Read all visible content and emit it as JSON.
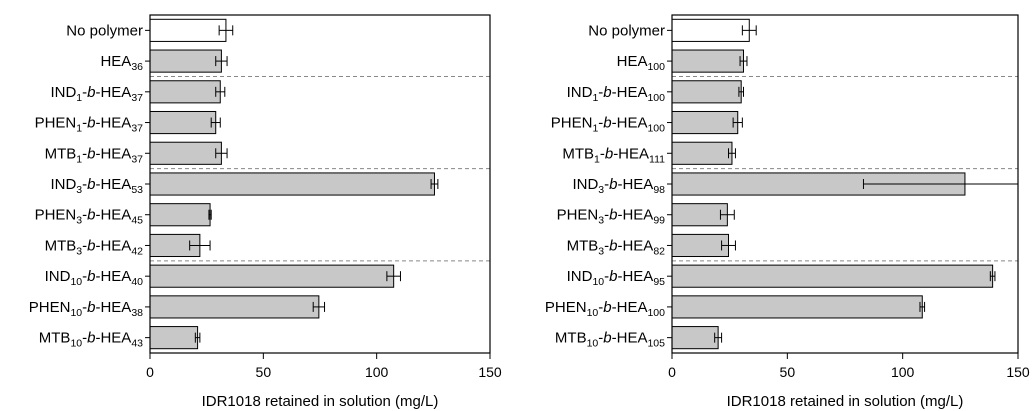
{
  "chart_data": [
    {
      "type": "bar",
      "orientation": "horizontal",
      "categories": [
        [
          "No polymer"
        ],
        [
          "HEA",
          {
            "sub": "36"
          }
        ],
        [
          "IND",
          {
            "sub": "1"
          },
          "-",
          {
            "it": "b"
          },
          "-HEA",
          {
            "sub": "37"
          }
        ],
        [
          "PHEN",
          {
            "sub": "1"
          },
          "-",
          {
            "it": "b"
          },
          "-HEA",
          {
            "sub": "37"
          }
        ],
        [
          "MTB",
          {
            "sub": "1"
          },
          "-",
          {
            "it": "b"
          },
          "-HEA",
          {
            "sub": "37"
          }
        ],
        [
          "IND",
          {
            "sub": "3"
          },
          "-",
          {
            "it": "b"
          },
          "-HEA",
          {
            "sub": "53"
          }
        ],
        [
          "PHEN",
          {
            "sub": "3"
          },
          "-",
          {
            "it": "b"
          },
          "-HEA",
          {
            "sub": "45"
          }
        ],
        [
          "MTB",
          {
            "sub": "3"
          },
          "-",
          {
            "it": "b"
          },
          "-HEA",
          {
            "sub": "42"
          }
        ],
        [
          "IND",
          {
            "sub": "10"
          },
          "-",
          {
            "it": "b"
          },
          "-HEA",
          {
            "sub": "40"
          }
        ],
        [
          "PHEN",
          {
            "sub": "10"
          },
          "-",
          {
            "it": "b"
          },
          "-HEA",
          {
            "sub": "38"
          }
        ],
        [
          "MTB",
          {
            "sub": "10"
          },
          "-",
          {
            "it": "b"
          },
          "-HEA",
          {
            "sub": "43"
          }
        ]
      ],
      "values": [
        33.5,
        31.5,
        31,
        29,
        31.5,
        125.5,
        26.5,
        22,
        107.5,
        74.5,
        21
      ],
      "errors": [
        3,
        2.5,
        2,
        2,
        2.5,
        1.5,
        0.5,
        4.5,
        3,
        2.5,
        1
      ],
      "bar_colors": [
        "#ffffff",
        "#c8c8c8",
        "#c8c8c8",
        "#c8c8c8",
        "#c8c8c8",
        "#c8c8c8",
        "#c8c8c8",
        "#c8c8c8",
        "#c8c8c8",
        "#c8c8c8",
        "#c8c8c8"
      ],
      "group_separators_after": [
        1,
        4,
        7
      ],
      "xlabel": "IDR1018 retained in solution (mg/L)",
      "xlim": [
        0,
        150
      ],
      "xticks": [
        0,
        50,
        100,
        150
      ],
      "tick_labels": [
        "0",
        "50",
        "100",
        "150"
      ]
    },
    {
      "type": "bar",
      "orientation": "horizontal",
      "categories": [
        [
          "No polymer"
        ],
        [
          "HEA",
          {
            "sub": "100"
          }
        ],
        [
          "IND",
          {
            "sub": "1"
          },
          "-",
          {
            "it": "b"
          },
          "-HEA",
          {
            "sub": "100"
          }
        ],
        [
          "PHEN",
          {
            "sub": "1"
          },
          "-",
          {
            "it": "b"
          },
          "-HEA",
          {
            "sub": "100"
          }
        ],
        [
          "MTB",
          {
            "sub": "1"
          },
          "-",
          {
            "it": "b"
          },
          "-HEA",
          {
            "sub": "111"
          }
        ],
        [
          "IND",
          {
            "sub": "3"
          },
          "-",
          {
            "it": "b"
          },
          "-HEA",
          {
            "sub": "98"
          }
        ],
        [
          "PHEN",
          {
            "sub": "3"
          },
          "-",
          {
            "it": "b"
          },
          "-HEA",
          {
            "sub": "99"
          }
        ],
        [
          "MTB",
          {
            "sub": "3"
          },
          "-",
          {
            "it": "b"
          },
          "-HEA",
          {
            "sub": "82"
          }
        ],
        [
          "IND",
          {
            "sub": "10"
          },
          "-",
          {
            "it": "b"
          },
          "-HEA",
          {
            "sub": "95"
          }
        ],
        [
          "PHEN",
          {
            "sub": "10"
          },
          "-",
          {
            "it": "b"
          },
          "-HEA",
          {
            "sub": "100"
          }
        ],
        [
          "MTB",
          {
            "sub": "10"
          },
          "-",
          {
            "it": "b"
          },
          "-HEA",
          {
            "sub": "105"
          }
        ]
      ],
      "values": [
        33.5,
        31,
        30,
        28.5,
        26,
        127,
        24,
        24.5,
        139,
        108.5,
        20
      ],
      "errors": [
        3,
        1.5,
        1,
        2,
        1.5,
        44,
        3,
        3,
        1,
        1,
        1.5
      ],
      "bar_colors": [
        "#ffffff",
        "#c8c8c8",
        "#c8c8c8",
        "#c8c8c8",
        "#c8c8c8",
        "#c8c8c8",
        "#c8c8c8",
        "#c8c8c8",
        "#c8c8c8",
        "#c8c8c8",
        "#c8c8c8"
      ],
      "group_separators_after": [
        1,
        4,
        7
      ],
      "xlabel": "IDR1018 retained in solution (mg/L)",
      "xlim": [
        0,
        150
      ],
      "xticks": [
        0,
        50,
        100,
        150
      ],
      "tick_labels": [
        "0",
        "50",
        "100",
        "150"
      ]
    }
  ]
}
